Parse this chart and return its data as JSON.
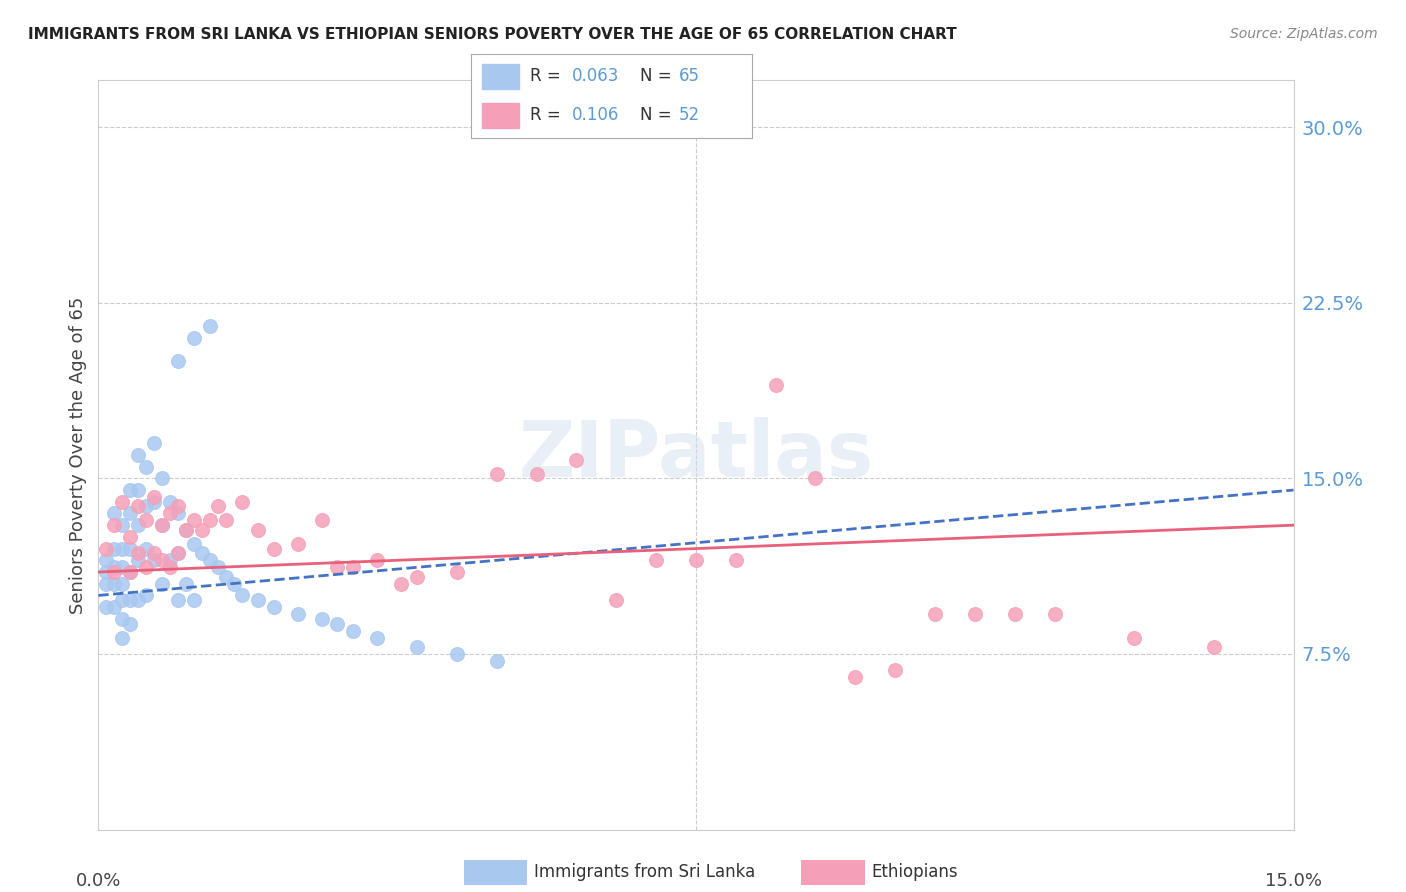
{
  "title": "IMMIGRANTS FROM SRI LANKA VS ETHIOPIAN SENIORS POVERTY OVER THE AGE OF 65 CORRELATION CHART",
  "source": "Source: ZipAtlas.com",
  "ylabel": "Seniors Poverty Over the Age of 65",
  "yticks": [
    0.075,
    0.15,
    0.225,
    0.3
  ],
  "ytick_labels": [
    "7.5%",
    "15.0%",
    "22.5%",
    "30.0%"
  ],
  "xlim": [
    0.0,
    0.15
  ],
  "ylim": [
    0.0,
    0.32
  ],
  "legend1_r": "0.063",
  "legend1_n": "65",
  "legend2_r": "0.106",
  "legend2_n": "52",
  "sri_lanka_color": "#a8c8f0",
  "ethiopian_color": "#f5a0b8",
  "sri_lanka_line_color": "#4472c4",
  "ethiopian_line_color": "#e8607a",
  "background_color": "#ffffff",
  "grid_color": "#cccccc",
  "watermark": "ZIPatlas",
  "sri_lanka_x": [
    0.001,
    0.001,
    0.001,
    0.001,
    0.002,
    0.002,
    0.002,
    0.002,
    0.002,
    0.003,
    0.003,
    0.003,
    0.003,
    0.003,
    0.003,
    0.003,
    0.004,
    0.004,
    0.004,
    0.004,
    0.004,
    0.004,
    0.005,
    0.005,
    0.005,
    0.005,
    0.005,
    0.006,
    0.006,
    0.006,
    0.006,
    0.007,
    0.007,
    0.007,
    0.008,
    0.008,
    0.008,
    0.009,
    0.009,
    0.01,
    0.01,
    0.01,
    0.011,
    0.011,
    0.012,
    0.012,
    0.013,
    0.014,
    0.015,
    0.016,
    0.017,
    0.018,
    0.02,
    0.022,
    0.025,
    0.028,
    0.03,
    0.032,
    0.035,
    0.04,
    0.045,
    0.05,
    0.01,
    0.012,
    0.014
  ],
  "sri_lanka_y": [
    0.115,
    0.11,
    0.105,
    0.095,
    0.135,
    0.12,
    0.112,
    0.105,
    0.095,
    0.13,
    0.12,
    0.112,
    0.105,
    0.098,
    0.09,
    0.082,
    0.145,
    0.135,
    0.12,
    0.11,
    0.098,
    0.088,
    0.16,
    0.145,
    0.13,
    0.115,
    0.098,
    0.155,
    0.138,
    0.12,
    0.1,
    0.165,
    0.14,
    0.115,
    0.15,
    0.13,
    0.105,
    0.14,
    0.115,
    0.135,
    0.118,
    0.098,
    0.128,
    0.105,
    0.122,
    0.098,
    0.118,
    0.115,
    0.112,
    0.108,
    0.105,
    0.1,
    0.098,
    0.095,
    0.092,
    0.09,
    0.088,
    0.085,
    0.082,
    0.078,
    0.075,
    0.072,
    0.2,
    0.21,
    0.215
  ],
  "ethiopian_x": [
    0.001,
    0.002,
    0.002,
    0.003,
    0.004,
    0.004,
    0.005,
    0.005,
    0.006,
    0.006,
    0.007,
    0.007,
    0.008,
    0.008,
    0.009,
    0.009,
    0.01,
    0.01,
    0.011,
    0.012,
    0.013,
    0.014,
    0.015,
    0.016,
    0.018,
    0.02,
    0.022,
    0.025,
    0.028,
    0.03,
    0.032,
    0.035,
    0.038,
    0.04,
    0.045,
    0.05,
    0.055,
    0.06,
    0.065,
    0.07,
    0.075,
    0.08,
    0.085,
    0.09,
    0.095,
    0.1,
    0.105,
    0.11,
    0.115,
    0.12,
    0.13,
    0.14
  ],
  "ethiopian_y": [
    0.12,
    0.13,
    0.11,
    0.14,
    0.125,
    0.11,
    0.138,
    0.118,
    0.132,
    0.112,
    0.142,
    0.118,
    0.13,
    0.115,
    0.135,
    0.112,
    0.138,
    0.118,
    0.128,
    0.132,
    0.128,
    0.132,
    0.138,
    0.132,
    0.14,
    0.128,
    0.12,
    0.122,
    0.132,
    0.112,
    0.112,
    0.115,
    0.105,
    0.108,
    0.11,
    0.152,
    0.152,
    0.158,
    0.098,
    0.115,
    0.115,
    0.115,
    0.19,
    0.15,
    0.065,
    0.068,
    0.092,
    0.092,
    0.092,
    0.092,
    0.082,
    0.078
  ]
}
